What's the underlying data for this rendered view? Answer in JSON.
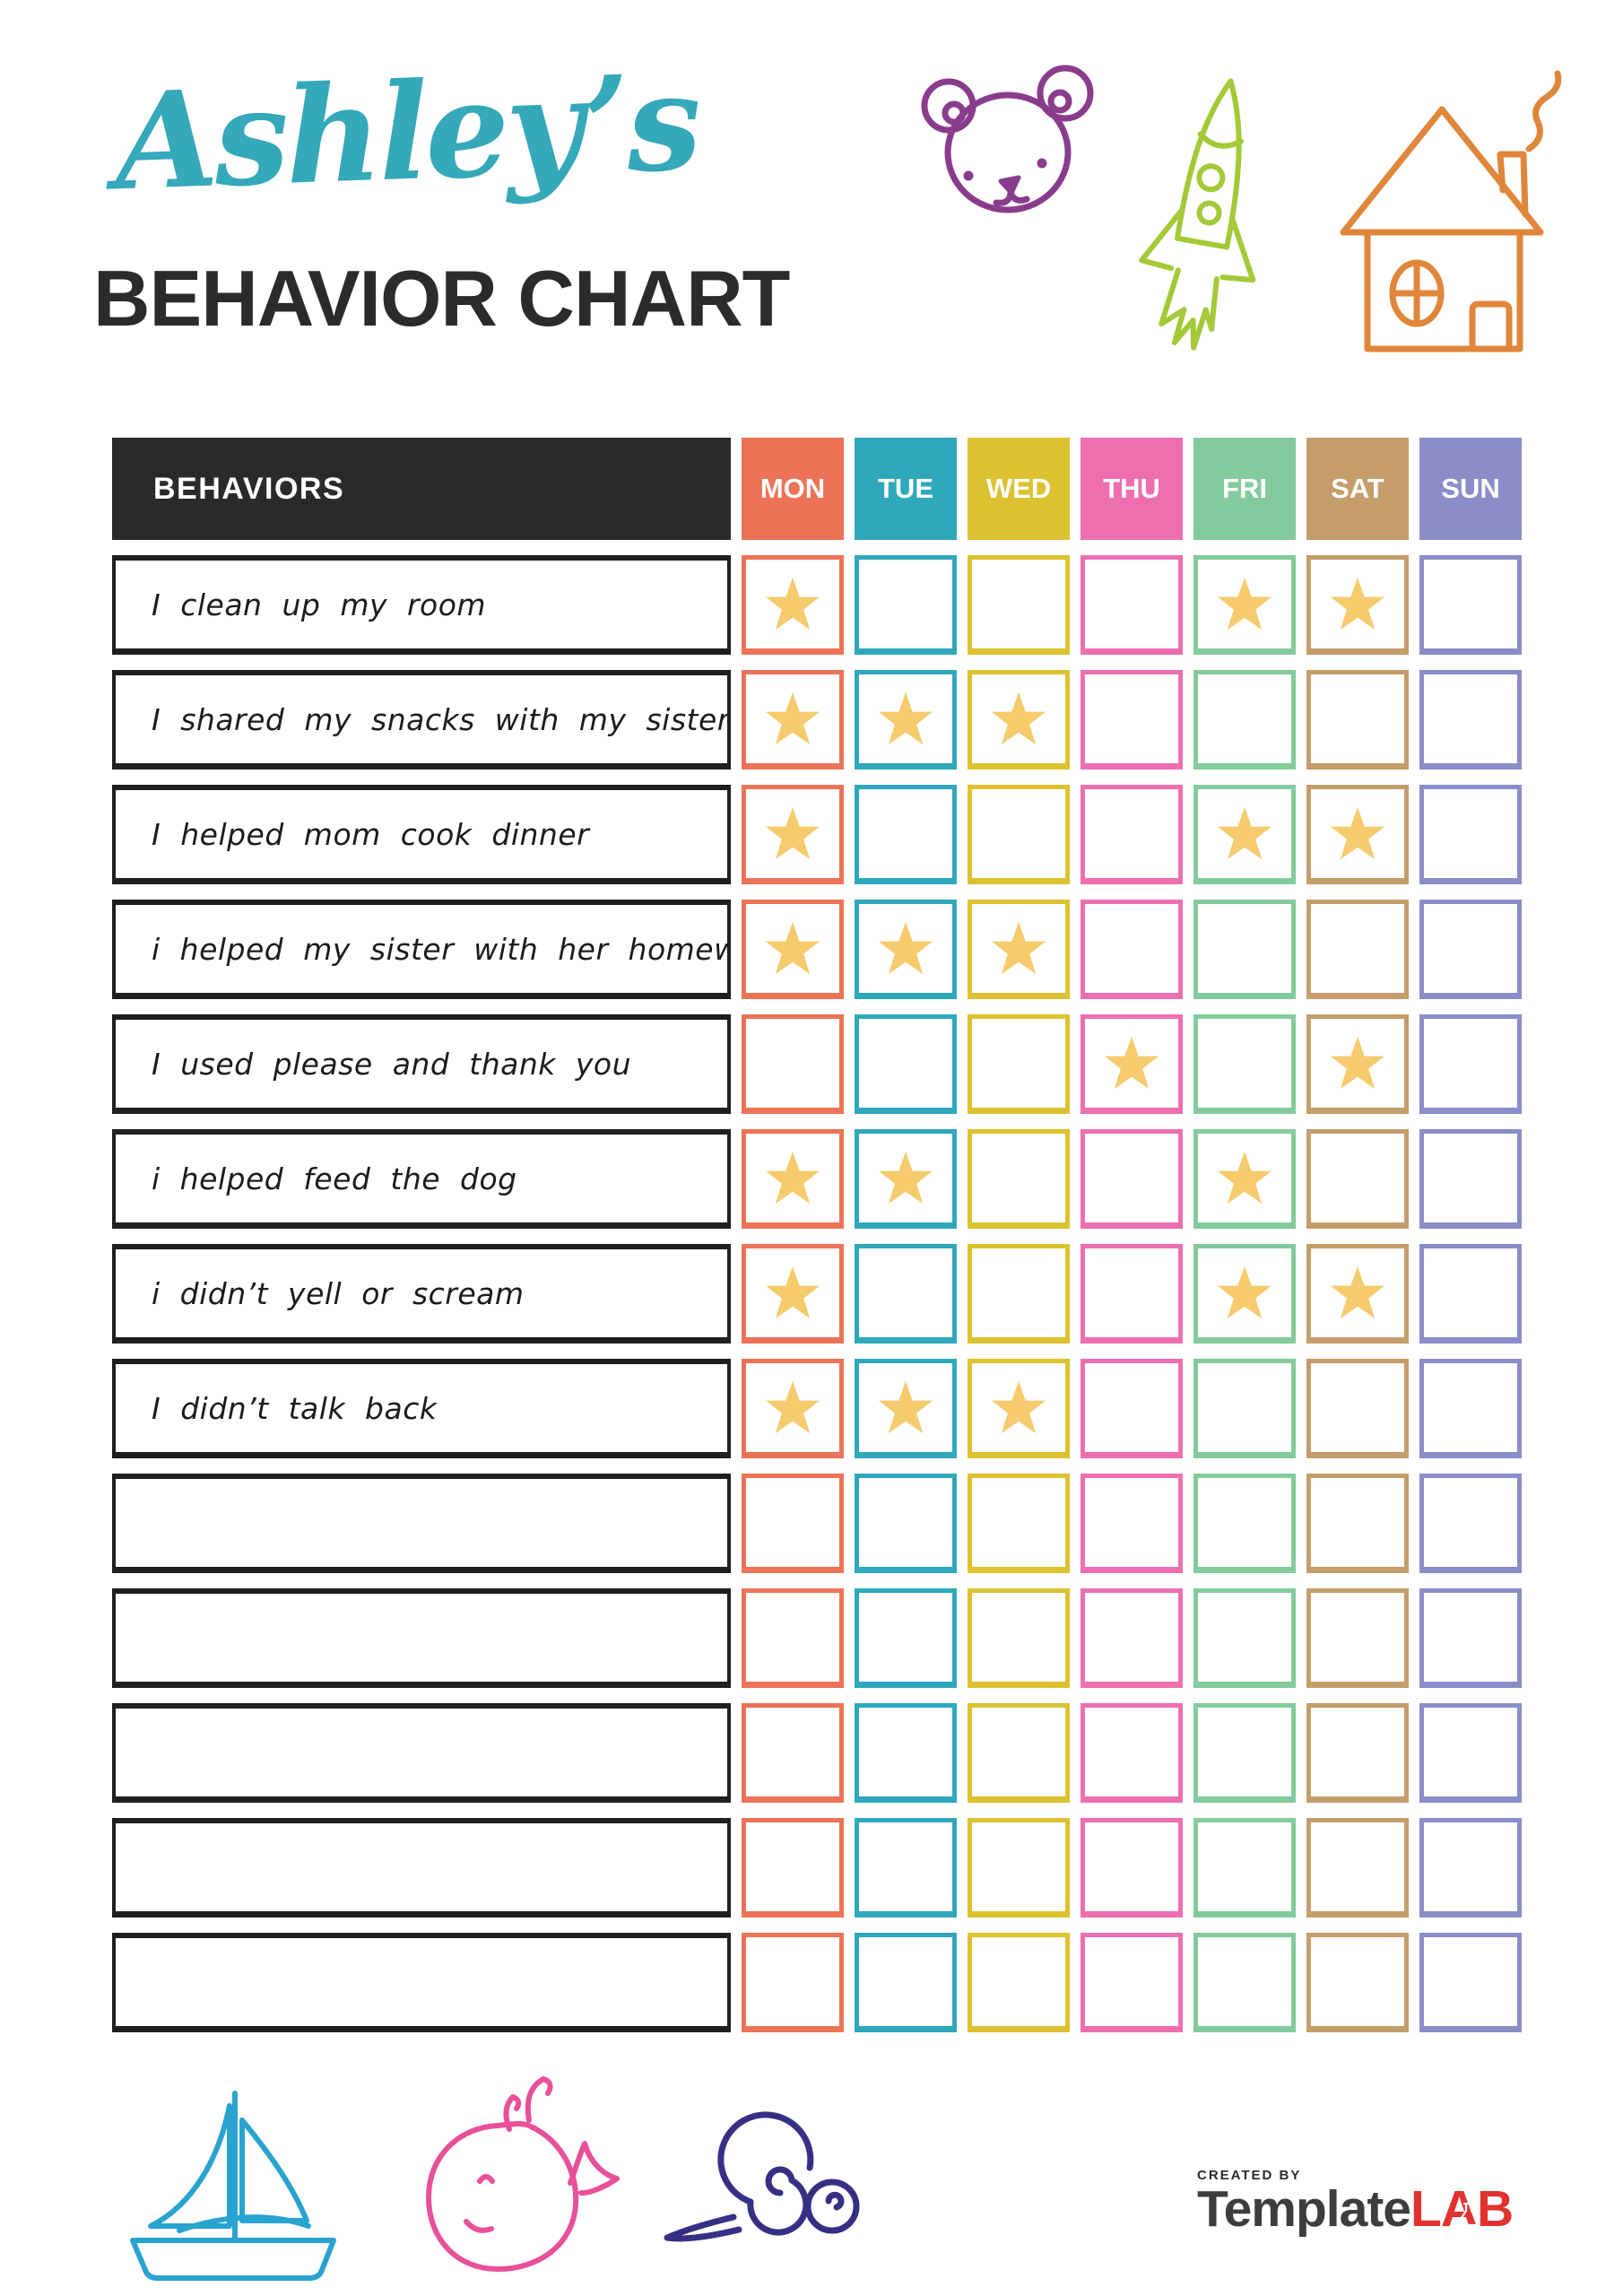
{
  "header": {
    "script_title": "Ashley’s",
    "script_color": "#35a8ba",
    "main_title": "BEHAVIOR CHART"
  },
  "table": {
    "behaviors_header": "BEHAVIORS",
    "header_bg": "#2b2a2a",
    "star_color": "#f6cb6e",
    "days": [
      {
        "label": "MON",
        "color": "#ec7357"
      },
      {
        "label": "TUE",
        "color": "#2fa8bc"
      },
      {
        "label": "WED",
        "color": "#dcc230"
      },
      {
        "label": "THU",
        "color": "#ee6fb0"
      },
      {
        "label": "FRI",
        "color": "#83cb9d"
      },
      {
        "label": "SAT",
        "color": "#c49d6b"
      },
      {
        "label": "SUN",
        "color": "#8b8dc8"
      }
    ],
    "rows": [
      {
        "behavior": "I clean up my room",
        "stars": [
          "MON",
          "FRI",
          "SAT"
        ]
      },
      {
        "behavior": "I shared my snacks with my sister",
        "stars": [
          "MON",
          "TUE",
          "WED"
        ]
      },
      {
        "behavior": "I helped mom cook dinner",
        "stars": [
          "MON",
          "FRI",
          "SAT"
        ]
      },
      {
        "behavior": "i helped my sister with her homework",
        "stars": [
          "MON",
          "TUE",
          "WED"
        ]
      },
      {
        "behavior": "I used please and thank you",
        "stars": [
          "THU",
          "SAT"
        ]
      },
      {
        "behavior": "i helped feed the dog",
        "stars": [
          "MON",
          "TUE",
          "FRI"
        ]
      },
      {
        "behavior": "i didn’t yell or scream",
        "stars": [
          "MON",
          "FRI",
          "SAT"
        ]
      },
      {
        "behavior": "I didn’t talk back",
        "stars": [
          "MON",
          "TUE",
          "WED"
        ]
      },
      {
        "behavior": "",
        "stars": []
      },
      {
        "behavior": "",
        "stars": []
      },
      {
        "behavior": "",
        "stars": []
      },
      {
        "behavior": "",
        "stars": []
      },
      {
        "behavior": "",
        "stars": []
      }
    ]
  },
  "decorations": {
    "top": [
      {
        "name": "bear",
        "color": "#8a3c8c"
      },
      {
        "name": "rocket",
        "color": "#a4c937"
      },
      {
        "name": "house",
        "color": "#e0863a"
      }
    ],
    "bottom": [
      {
        "name": "sailboat",
        "color": "#29a3d0"
      },
      {
        "name": "whale",
        "color": "#e8509a"
      },
      {
        "name": "snail",
        "color": "#363085"
      }
    ]
  },
  "footer": {
    "created_by": "CREATED BY",
    "brand_name": "Template",
    "brand_suffix": "LAB",
    "brand_color": "#3d3d3d",
    "brand_suffix_color": "#e23230"
  }
}
